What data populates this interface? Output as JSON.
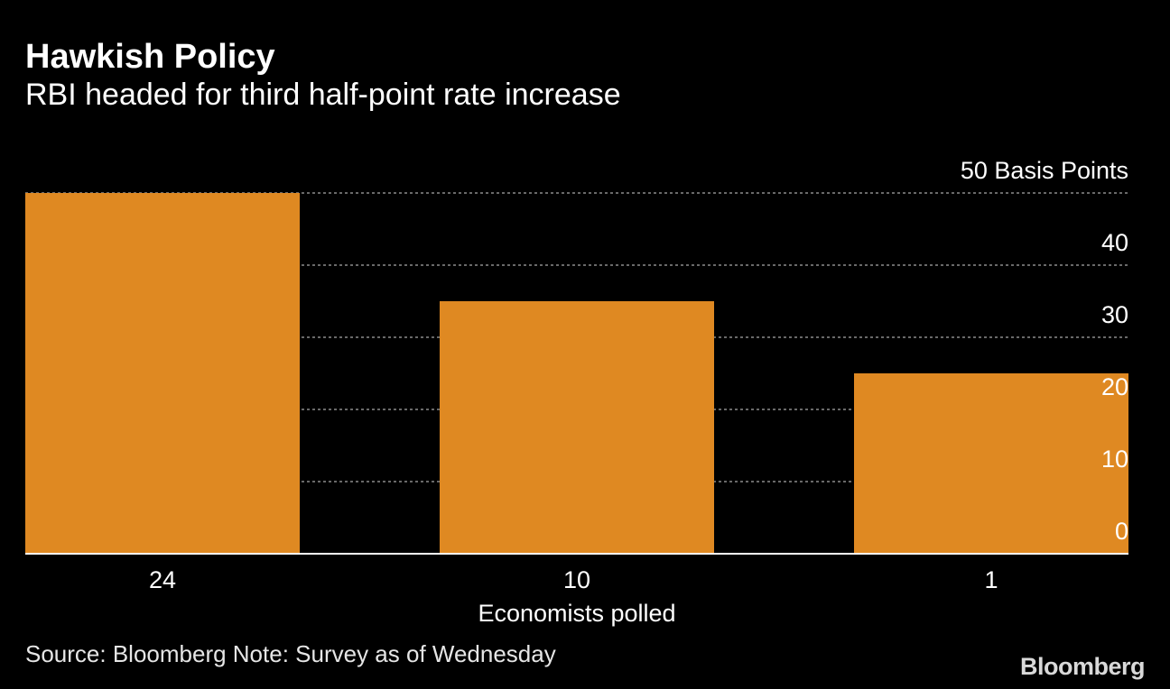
{
  "header": {
    "title": "Hawkish Policy",
    "subtitle": "RBI headed for third half-point rate increase"
  },
  "chart_data": {
    "type": "bar",
    "title": "Hawkish Policy",
    "subtitle": "RBI headed for third half-point rate increase",
    "categories": [
      "24",
      "10",
      "1"
    ],
    "values": [
      50,
      35,
      25
    ],
    "xlabel": "Economists polled",
    "ylabel": "Basis Points",
    "ylim": [
      0,
      50
    ],
    "yticks": [
      0,
      10,
      20,
      30,
      40,
      50
    ],
    "top_tick_label": "50 Basis Points",
    "grid": true,
    "y_axis_side": "right",
    "bar_color": "#DF8922"
  },
  "footer": {
    "source": "Source: Bloomberg Note: Survey as of Wednesday",
    "logo": "Bloomberg"
  },
  "colors": {
    "background": "#000000",
    "text": "#ffffff",
    "grid": "#8c8c8c",
    "axis": "#ffffff"
  }
}
